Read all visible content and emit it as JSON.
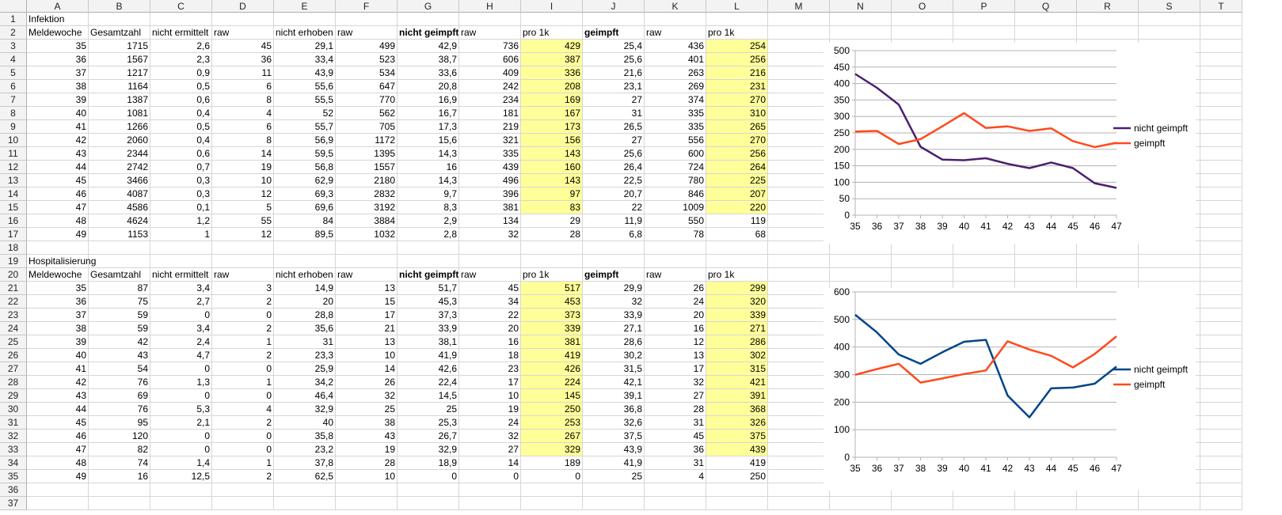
{
  "columns": [
    "A",
    "B",
    "C",
    "D",
    "E",
    "F",
    "G",
    "H",
    "I",
    "J",
    "K",
    "L",
    "M",
    "N",
    "O",
    "P",
    "Q",
    "R",
    "S",
    "T"
  ],
  "header_labels": {
    "meldewoche": "Meldewoche",
    "gesamtzahl": "Gesamtzahl",
    "nicht_ermittelt": "nicht ermittelt",
    "raw": "raw",
    "nicht_erhoben": "nicht erhoben",
    "nicht_geimpft": "nicht geimpft",
    "pro_1k": "pro 1k",
    "geimpft": "geimpft"
  },
  "infektion": {
    "title": "Infektion",
    "rows": [
      [
        "35",
        "1715",
        "2,6",
        "45",
        "29,1",
        "499",
        "42,9",
        "736",
        "429",
        "25,4",
        "436",
        "254"
      ],
      [
        "36",
        "1567",
        "2,3",
        "36",
        "33,4",
        "523",
        "38,7",
        "606",
        "387",
        "25,6",
        "401",
        "256"
      ],
      [
        "37",
        "1217",
        "0,9",
        "11",
        "43,9",
        "534",
        "33,6",
        "409",
        "336",
        "21,6",
        "263",
        "216"
      ],
      [
        "38",
        "1164",
        "0,5",
        "6",
        "55,6",
        "647",
        "20,8",
        "242",
        "208",
        "23,1",
        "269",
        "231"
      ],
      [
        "39",
        "1387",
        "0,6",
        "8",
        "55,5",
        "770",
        "16,9",
        "234",
        "169",
        "27",
        "374",
        "270"
      ],
      [
        "40",
        "1081",
        "0,4",
        "4",
        "52",
        "562",
        "16,7",
        "181",
        "167",
        "31",
        "335",
        "310"
      ],
      [
        "41",
        "1266",
        "0,5",
        "6",
        "55,7",
        "705",
        "17,3",
        "219",
        "173",
        "26,5",
        "335",
        "265"
      ],
      [
        "42",
        "2060",
        "0,4",
        "8",
        "56,9",
        "1172",
        "15,6",
        "321",
        "156",
        "27",
        "556",
        "270"
      ],
      [
        "43",
        "2344",
        "0,6",
        "14",
        "59,5",
        "1395",
        "14,3",
        "335",
        "143",
        "25,6",
        "600",
        "256"
      ],
      [
        "44",
        "2742",
        "0,7",
        "19",
        "56,8",
        "1557",
        "16",
        "439",
        "160",
        "26,4",
        "724",
        "264"
      ],
      [
        "45",
        "3466",
        "0,3",
        "10",
        "62,9",
        "2180",
        "14,3",
        "496",
        "143",
        "22,5",
        "780",
        "225"
      ],
      [
        "46",
        "4087",
        "0,3",
        "12",
        "69,3",
        "2832",
        "9,7",
        "396",
        "97",
        "20,7",
        "846",
        "207"
      ],
      [
        "47",
        "4586",
        "0,1",
        "5",
        "69,6",
        "3192",
        "8,3",
        "381",
        "83",
        "22",
        "1009",
        "220"
      ],
      [
        "48",
        "4624",
        "1,2",
        "55",
        "84",
        "3884",
        "2,9",
        "134",
        "29",
        "11,9",
        "550",
        "119"
      ],
      [
        "49",
        "1153",
        "1",
        "12",
        "89,5",
        "1032",
        "2,8",
        "32",
        "28",
        "6,8",
        "78",
        "68"
      ]
    ]
  },
  "hospitalisierung": {
    "title": "Hospitalisierung",
    "rows": [
      [
        "35",
        "87",
        "3,4",
        "3",
        "14,9",
        "13",
        "51,7",
        "45",
        "517",
        "29,9",
        "26",
        "299"
      ],
      [
        "36",
        "75",
        "2,7",
        "2",
        "20",
        "15",
        "45,3",
        "34",
        "453",
        "32",
        "24",
        "320"
      ],
      [
        "37",
        "59",
        "0",
        "0",
        "28,8",
        "17",
        "37,3",
        "22",
        "373",
        "33,9",
        "20",
        "339"
      ],
      [
        "38",
        "59",
        "3,4",
        "2",
        "35,6",
        "21",
        "33,9",
        "20",
        "339",
        "27,1",
        "16",
        "271"
      ],
      [
        "39",
        "42",
        "2,4",
        "1",
        "31",
        "13",
        "38,1",
        "16",
        "381",
        "28,6",
        "12",
        "286"
      ],
      [
        "40",
        "43",
        "4,7",
        "2",
        "23,3",
        "10",
        "41,9",
        "18",
        "419",
        "30,2",
        "13",
        "302"
      ],
      [
        "41",
        "54",
        "0",
        "0",
        "25,9",
        "14",
        "42,6",
        "23",
        "426",
        "31,5",
        "17",
        "315"
      ],
      [
        "42",
        "76",
        "1,3",
        "1",
        "34,2",
        "26",
        "22,4",
        "17",
        "224",
        "42,1",
        "32",
        "421"
      ],
      [
        "43",
        "69",
        "0",
        "0",
        "46,4",
        "32",
        "14,5",
        "10",
        "145",
        "39,1",
        "27",
        "391"
      ],
      [
        "44",
        "76",
        "5,3",
        "4",
        "32,9",
        "25",
        "25",
        "19",
        "250",
        "36,8",
        "28",
        "368"
      ],
      [
        "45",
        "95",
        "2,1",
        "2",
        "40",
        "38",
        "25,3",
        "24",
        "253",
        "32,6",
        "31",
        "326"
      ],
      [
        "46",
        "120",
        "0",
        "0",
        "35,8",
        "43",
        "26,7",
        "32",
        "267",
        "37,5",
        "45",
        "375"
      ],
      [
        "47",
        "82",
        "0",
        "0",
        "23,2",
        "19",
        "32,9",
        "27",
        "329",
        "43,9",
        "36",
        "439"
      ],
      [
        "48",
        "74",
        "1,4",
        "1",
        "37,8",
        "28",
        "18,9",
        "14",
        "189",
        "41,9",
        "31",
        "419"
      ],
      [
        "49",
        "16",
        "12,5",
        "2",
        "62,5",
        "10",
        "0",
        "0",
        "0",
        "25",
        "4",
        "250"
      ]
    ]
  },
  "chart_data": [
    {
      "type": "line",
      "x": [
        35,
        36,
        37,
        38,
        39,
        40,
        41,
        42,
        43,
        44,
        45,
        46,
        47
      ],
      "series": [
        {
          "name": "nicht geimpft",
          "values": [
            429,
            387,
            336,
            208,
            169,
            167,
            173,
            156,
            143,
            160,
            143,
            97,
            83
          ],
          "color": "#4b1f6f"
        },
        {
          "name": "geimpft",
          "values": [
            254,
            256,
            216,
            231,
            270,
            310,
            265,
            270,
            256,
            264,
            225,
            207,
            220
          ],
          "color": "#ff4a1c"
        }
      ],
      "ylim": [
        0,
        500
      ],
      "yticks": [
        0,
        50,
        100,
        150,
        200,
        250,
        300,
        350,
        400,
        450,
        500
      ],
      "grid": true,
      "legend": "right",
      "title": "",
      "xlabel": "",
      "ylabel": ""
    },
    {
      "type": "line",
      "x": [
        35,
        36,
        37,
        38,
        39,
        40,
        41,
        42,
        43,
        44,
        45,
        46,
        47
      ],
      "series": [
        {
          "name": "nicht geimpft",
          "values": [
            517,
            453,
            373,
            339,
            381,
            419,
            426,
            224,
            145,
            250,
            253,
            267,
            329
          ],
          "color": "#004586"
        },
        {
          "name": "geimpft",
          "values": [
            299,
            320,
            339,
            271,
            286,
            302,
            315,
            421,
            391,
            368,
            326,
            375,
            439
          ],
          "color": "#ff4a1c"
        }
      ],
      "ylim": [
        0,
        600
      ],
      "yticks": [
        0,
        100,
        200,
        300,
        400,
        500,
        600
      ],
      "grid": true,
      "legend": "right",
      "title": "",
      "xlabel": "",
      "ylabel": ""
    }
  ]
}
